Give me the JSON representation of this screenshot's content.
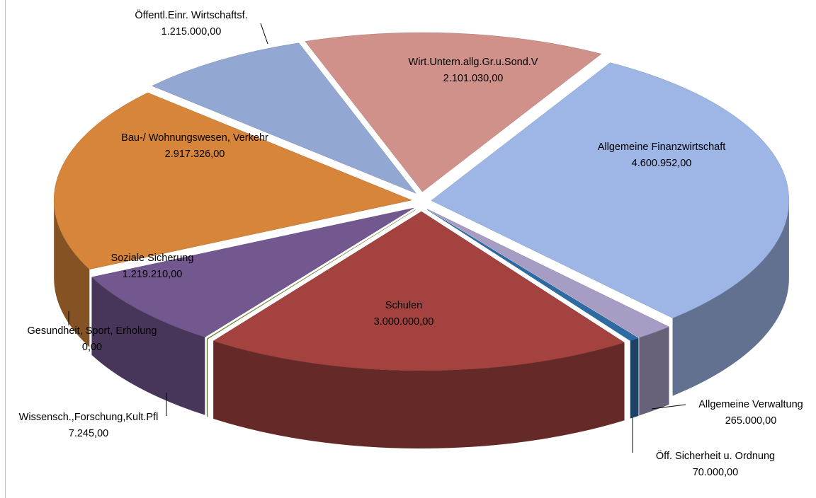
{
  "chart_data": {
    "type": "pie3d",
    "categories": [
      "Allgemeine Finanzwirtschaft",
      "Allgemeine Verwaltung",
      "Öff. Sicherheit u. Ordnung",
      "Schulen",
      "Wissensch.,Forschung,Kult.Pfl",
      "Gesundheit, Sport, Erholung",
      "Soziale Sicherung",
      "Bau-/ Wohnungswesen, Verkehr",
      "Öffentl.Einr. Wirtschaftsf.",
      "Wirt.Untern.allg.Gr.u.Sond.V"
    ],
    "values": [
      4600952,
      265000,
      70000,
      3000000,
      7245,
      0,
      1219210,
      2917326,
      1215000,
      2101030
    ],
    "value_labels": [
      "4.600.952,00",
      "265.000,00",
      "70.000,00",
      "3.000.000,00",
      "7.245,00",
      "0,00",
      "1.219.210,00",
      "2.917.326,00",
      "1.215.000,00",
      "2.101.030,00"
    ],
    "colors": [
      "#9db6e6",
      "#a79cc4",
      "#2f6ba3",
      "#a3423f",
      "#7a9a3e",
      "#8faadc",
      "#73578f",
      "#d6853a",
      "#92a7d2",
      "#cf918a"
    ]
  }
}
